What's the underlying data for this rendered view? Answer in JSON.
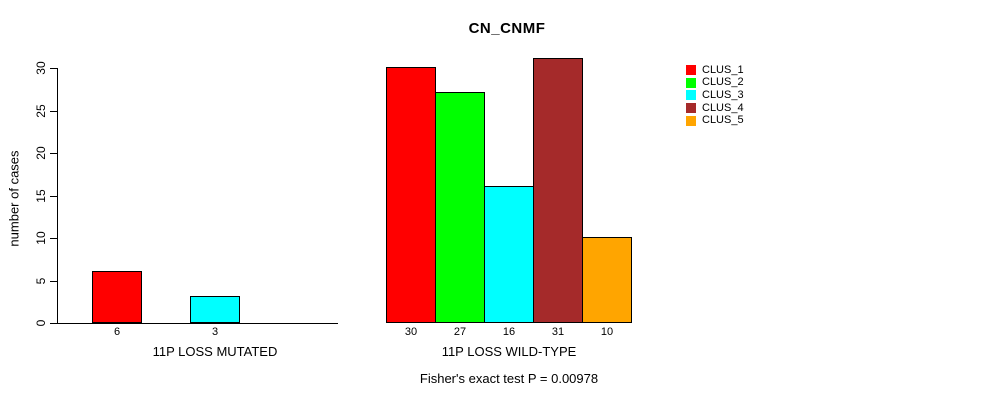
{
  "chart_data": {
    "type": "bar",
    "title": "CN_CNMF",
    "xlabel": "",
    "ylabel": "number of cases",
    "ylim": [
      0,
      30
    ],
    "yticks": [
      0,
      5,
      10,
      15,
      20,
      25,
      30
    ],
    "grid": false,
    "legend_position": "right",
    "clusters": [
      {
        "name": "CLUS_1",
        "color": "#FF0000"
      },
      {
        "name": "CLUS_2",
        "color": "#00FF00"
      },
      {
        "name": "CLUS_3",
        "color": "#00FFFF"
      },
      {
        "name": "CLUS_4",
        "color": "#A52A2A"
      },
      {
        "name": "CLUS_5",
        "color": "#FFA500"
      }
    ],
    "groups": [
      {
        "label": "11P LOSS MUTATED",
        "values": [
          6,
          0,
          3,
          0,
          0
        ],
        "bar_labels": [
          "6",
          "",
          "3",
          "",
          ""
        ]
      },
      {
        "label": "11P LOSS WILD-TYPE",
        "values": [
          30,
          27,
          16,
          31,
          10
        ],
        "bar_labels": [
          "30",
          "27",
          "16",
          "31",
          "10"
        ]
      }
    ],
    "annotation": "Fisher's exact test P = 0.00978"
  }
}
